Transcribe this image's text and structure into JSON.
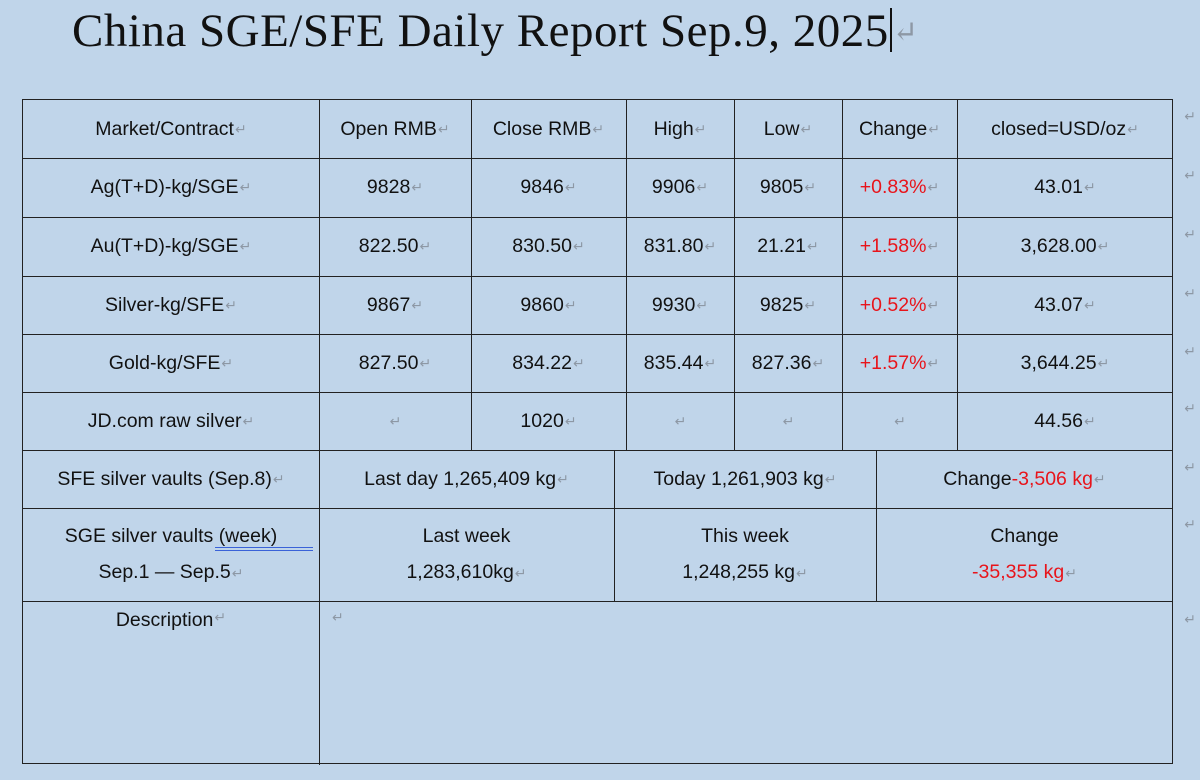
{
  "title": "China SGE/SFE Daily Report Sep.9, 2025",
  "para_mark": "↵",
  "row_mark": "↵",
  "headers": [
    "Market/Contract",
    "Open RMB",
    "Close RMB",
    "High",
    "Low",
    "Change",
    "closed=USD/oz"
  ],
  "rows": [
    {
      "market": "Ag(T+D)-kg/SGE",
      "open": "9828",
      "close": "9846",
      "high": "9906",
      "low": "9805",
      "change": "+0.83%",
      "usd": "43.01"
    },
    {
      "market": "Au(T+D)-kg/SGE",
      "open": "822.50",
      "close": "830.50",
      "high": "831.80",
      "low": "21.21",
      "change": "+1.58%",
      "usd": "3,628.00"
    },
    {
      "market": "Silver-kg/SFE",
      "open": "9867",
      "close": "9860",
      "high": "9930",
      "low": "9825",
      "change": "+0.52%",
      "usd": "43.07"
    },
    {
      "market": "Gold-kg/SFE",
      "open": "827.50",
      "close": "834.22",
      "high": "835.44",
      "low": "827.36",
      "change": "+1.57%",
      "usd": "3,644.25"
    },
    {
      "market": "JD.com raw silver",
      "open": "",
      "close": "1020",
      "high": "",
      "low": "",
      "change": "",
      "usd": "44.56"
    }
  ],
  "sfe_vaults": {
    "label": "SFE silver vaults (Sep.8)",
    "last_day": "Last day 1,265,409 kg",
    "today": "Today 1,261,903 kg",
    "change_label": "Change",
    "change_value": "-3,506 kg"
  },
  "sge_vaults": {
    "label_a": "SGE silver vaults ",
    "label_b": "(week)",
    "dates": "Sep.1 — Sep.5",
    "last_week_label": "Last week",
    "last_week_value": "1,283,610kg",
    "this_week_label": "This week",
    "this_week_value": "1,248,255 kg",
    "change_label": "Change",
    "change_value": "-35,355 kg"
  },
  "description_label": "Description",
  "colors": {
    "background": "#c0d5ea",
    "positive_change": "#e8141b",
    "para_mark": "#8d98a5"
  }
}
